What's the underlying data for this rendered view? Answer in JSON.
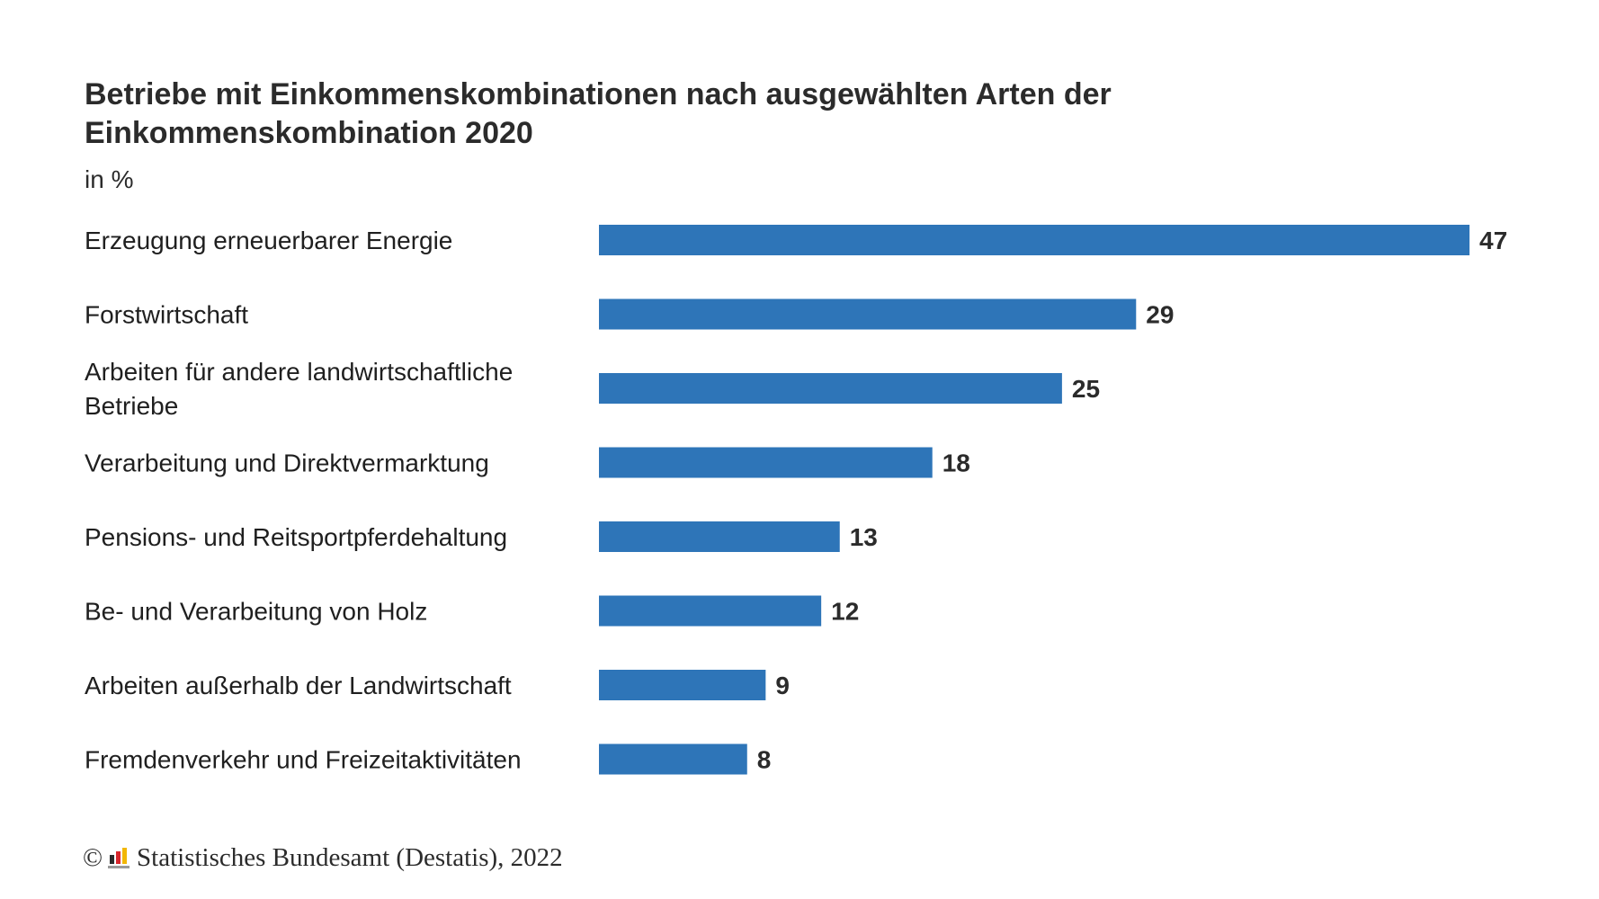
{
  "title": "Betriebe mit Einkommenskombinationen nach ausgewählten Arten der Einkommenskombination 2020",
  "subtitle": "in %",
  "footer": {
    "copyright_symbol": "©",
    "source": "Statistisches Bundesamt (Destatis), 2022",
    "logo_icon": "destatis-logo-icon"
  },
  "colors": {
    "bar": "#2e75b8",
    "text": "#1f1f1f"
  },
  "chart_data": {
    "type": "bar",
    "orientation": "horizontal",
    "title": "Betriebe mit Einkommenskombinationen nach ausgewählten Arten der Einkommenskombination 2020",
    "ylabel": "in %",
    "categories": [
      [
        "Erzeugung erneuerbarer Energie"
      ],
      [
        "Forstwirtschaft"
      ],
      [
        "Arbeiten für andere landwirtschaftliche",
        "Betriebe"
      ],
      [
        "Verarbeitung und Direktvermarktung"
      ],
      [
        "Pensions- und Reitsportpferdehaltung"
      ],
      [
        "Be- und Verarbeitung von Holz"
      ],
      [
        "Arbeiten außerhalb der Landwirtschaft"
      ],
      [
        "Fremdenverkehr und Freizeitaktivitäten"
      ]
    ],
    "values": [
      47,
      29,
      25,
      18,
      13,
      12,
      9,
      8
    ],
    "xlim": [
      0,
      47
    ],
    "grid": false,
    "legend": "none"
  }
}
